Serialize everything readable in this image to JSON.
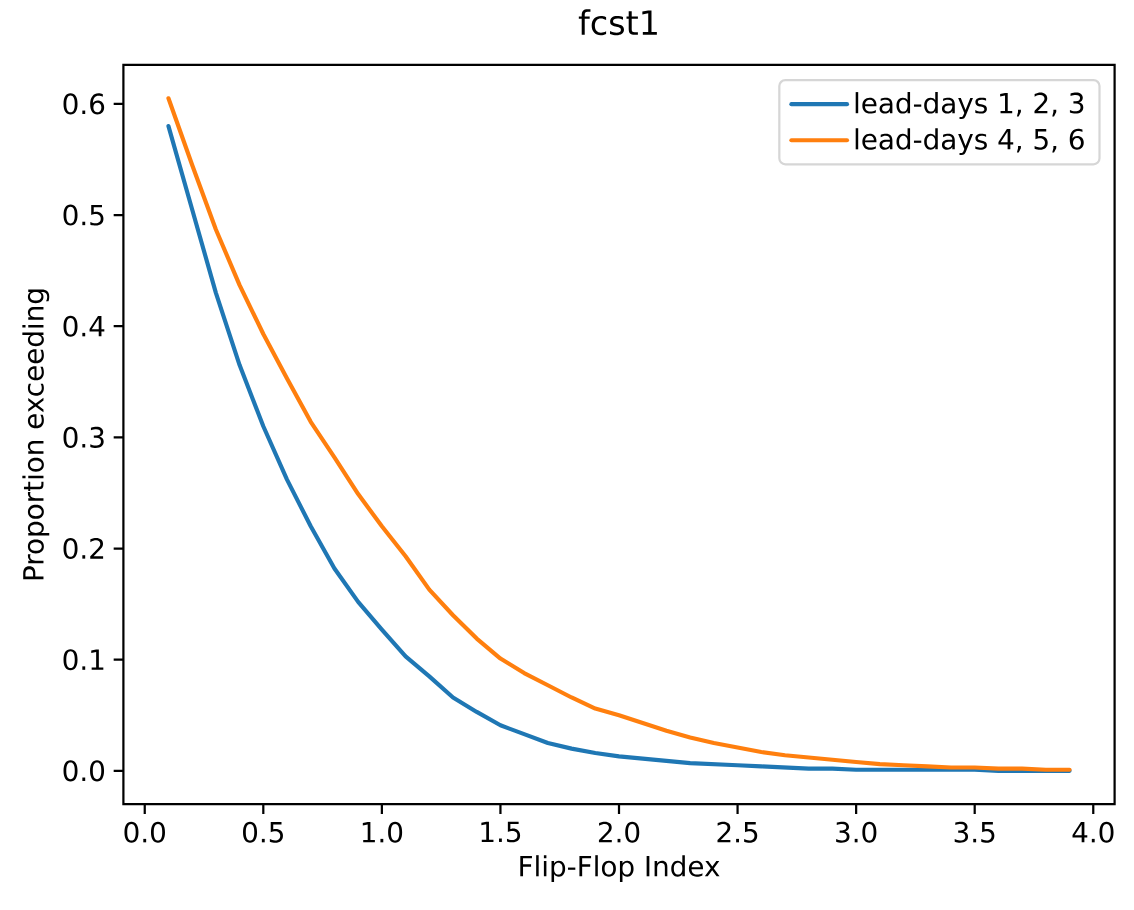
{
  "chart_data": {
    "type": "line",
    "title": "fcst1",
    "xlabel": "Flip-Flop Index",
    "ylabel": "Proportion exceeding",
    "x": [
      0.1,
      0.2,
      0.3,
      0.4,
      0.5,
      0.6,
      0.7,
      0.8,
      0.9,
      1.0,
      1.1,
      1.2,
      1.3,
      1.4,
      1.5,
      1.6,
      1.7,
      1.8,
      1.9,
      2.0,
      2.1,
      2.2,
      2.3,
      2.4,
      2.5,
      2.6,
      2.7,
      2.8,
      2.9,
      3.0,
      3.1,
      3.2,
      3.3,
      3.4,
      3.5,
      3.6,
      3.7,
      3.8,
      3.9
    ],
    "series": [
      {
        "name": "lead-days 1, 2, 3",
        "color": "#1f77b4",
        "values": [
          0.58,
          0.505,
          0.43,
          0.365,
          0.31,
          0.262,
          0.22,
          0.182,
          0.152,
          0.127,
          0.103,
          0.085,
          0.066,
          0.053,
          0.041,
          0.033,
          0.025,
          0.02,
          0.016,
          0.013,
          0.011,
          0.009,
          0.007,
          0.006,
          0.005,
          0.004,
          0.003,
          0.002,
          0.002,
          0.001,
          0.001,
          0.001,
          0.001,
          0.001,
          0.001,
          0.0,
          0.0,
          0.0,
          0.0
        ]
      },
      {
        "name": "lead-days 4, 5, 6",
        "color": "#ff7f0e",
        "values": [
          0.605,
          0.545,
          0.487,
          0.437,
          0.393,
          0.353,
          0.314,
          0.282,
          0.249,
          0.22,
          0.193,
          0.163,
          0.14,
          0.119,
          0.101,
          0.088,
          0.077,
          0.066,
          0.056,
          0.05,
          0.043,
          0.036,
          0.03,
          0.025,
          0.021,
          0.017,
          0.014,
          0.012,
          0.01,
          0.008,
          0.006,
          0.005,
          0.004,
          0.003,
          0.003,
          0.002,
          0.002,
          0.001,
          0.001
        ]
      }
    ],
    "xlim": [
      -0.09,
      4.09
    ],
    "ylim": [
      -0.03,
      0.635
    ],
    "xticks": [
      {
        "value": 0,
        "label": "0.0"
      },
      0.5,
      {
        "value": 1,
        "label": "1.0"
      },
      1.5,
      {
        "value": 2,
        "label": "2.0"
      },
      2.5,
      {
        "value": 3,
        "label": "3.0"
      },
      3.5,
      {
        "value": 4,
        "label": "4.0"
      }
    ],
    "yticks": [
      {
        "value": 0,
        "label": "0.0"
      },
      0.1,
      0.2,
      0.3,
      0.4,
      0.5,
      0.6
    ],
    "legend": "top right"
  }
}
